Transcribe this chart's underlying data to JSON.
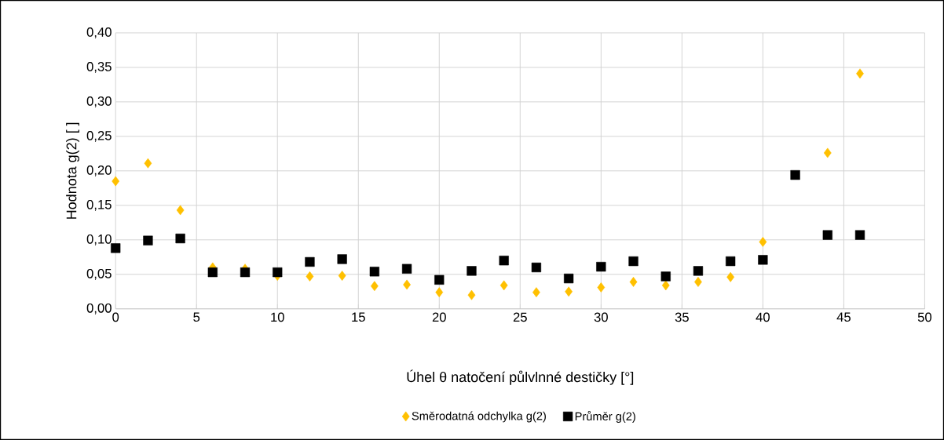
{
  "chart_data": {
    "type": "scatter",
    "xlabel": "Úhel θ natočení půlvlnné destičky [°]",
    "ylabel": "Hodnota g(2) [ ]",
    "x": [
      0,
      2,
      4,
      6,
      8,
      10,
      12,
      14,
      16,
      18,
      20,
      22,
      24,
      26,
      28,
      30,
      32,
      34,
      36,
      38,
      40,
      42,
      44,
      46
    ],
    "series": [
      {
        "name": "Směrodatná odchylka g(2)",
        "color": "#ffc000",
        "marker": "diamond",
        "values": [
          0.185,
          0.211,
          0.143,
          0.06,
          0.058,
          0.048,
          0.047,
          0.048,
          0.033,
          0.035,
          0.024,
          0.02,
          0.034,
          0.024,
          0.025,
          0.031,
          0.039,
          0.034,
          0.039,
          0.046,
          0.097,
          null,
          0.226,
          0.341
        ]
      },
      {
        "name": "Průměr g(2)",
        "color": "#000000",
        "marker": "square",
        "values": [
          0.088,
          0.099,
          0.102,
          0.053,
          0.053,
          0.053,
          0.068,
          0.072,
          0.054,
          0.058,
          0.042,
          0.055,
          0.07,
          0.06,
          0.044,
          0.061,
          0.069,
          0.047,
          0.055,
          0.069,
          0.071,
          0.194,
          0.107,
          0.107
        ]
      }
    ],
    "xlim": [
      0,
      50
    ],
    "xticks": [
      0,
      5,
      10,
      15,
      20,
      25,
      30,
      35,
      40,
      45,
      50
    ],
    "ylim": [
      0,
      0.4
    ],
    "yticks": [
      {
        "value": 0,
        "label": "0,00"
      },
      {
        "value": 0.05,
        "label": "0,05"
      },
      {
        "value": 0.1,
        "label": "0,10"
      },
      {
        "value": 0.15,
        "label": "0,15"
      },
      {
        "value": 0.2,
        "label": "0,20"
      },
      {
        "value": 0.25,
        "label": "0,25"
      },
      {
        "value": 0.3,
        "label": "0,30"
      },
      {
        "value": 0.35,
        "label": "0,35"
      },
      {
        "value": 0.4,
        "label": "0,40"
      }
    ],
    "grid": true,
    "legend": "bottom"
  }
}
